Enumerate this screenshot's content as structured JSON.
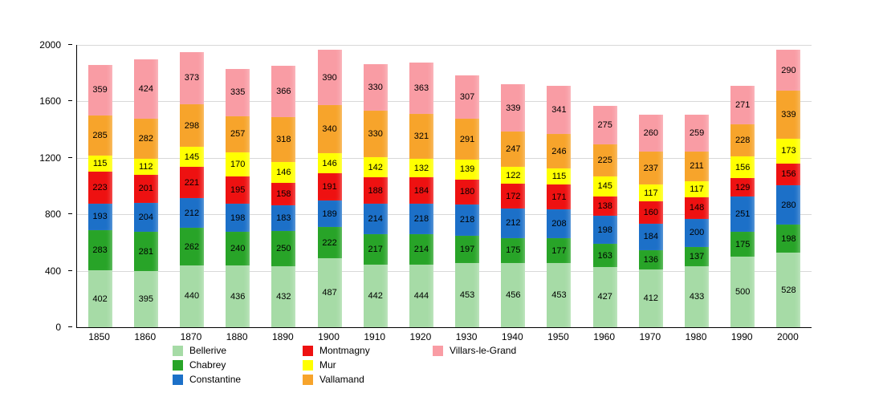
{
  "chart_data": {
    "type": "bar",
    "stacked": true,
    "title": "",
    "xlabel": "",
    "ylabel": "",
    "ylim": [
      0,
      2000
    ],
    "yticks": [
      0,
      400,
      800,
      1200,
      1600,
      2000
    ],
    "grid": true,
    "legend_position": "bottom",
    "categories": [
      "1850",
      "1860",
      "1870",
      "1880",
      "1890",
      "1900",
      "1910",
      "1920",
      "1930",
      "1940",
      "1950",
      "1960",
      "1970",
      "1980",
      "1990",
      "2000"
    ],
    "series": [
      {
        "name": "Bellerive",
        "color": "#a6dba6",
        "values": [
          402,
          395,
          440,
          436,
          432,
          487,
          442,
          444,
          453,
          456,
          453,
          427,
          412,
          433,
          500,
          528
        ]
      },
      {
        "name": "Chabrey",
        "color": "#28a428",
        "values": [
          283,
          281,
          262,
          240,
          250,
          222,
          217,
          214,
          197,
          175,
          177,
          163,
          136,
          137,
          175,
          198
        ]
      },
      {
        "name": "Constantine",
        "color": "#1c70c8",
        "values": [
          193,
          204,
          212,
          198,
          183,
          189,
          214,
          218,
          218,
          212,
          208,
          198,
          184,
          200,
          251,
          280
        ]
      },
      {
        "name": "Montmagny",
        "color": "#ee1111",
        "values": [
          223,
          201,
          221,
          195,
          158,
          191,
          188,
          184,
          180,
          172,
          171,
          138,
          160,
          148,
          129,
          156
        ]
      },
      {
        "name": "Mur",
        "color": "#ffff00",
        "values": [
          115,
          112,
          145,
          170,
          146,
          146,
          142,
          132,
          139,
          122,
          115,
          145,
          117,
          117,
          156,
          173
        ]
      },
      {
        "name": "Vallamand",
        "color": "#f7a42b",
        "values": [
          285,
          282,
          298,
          257,
          318,
          340,
          330,
          321,
          291,
          247,
          246,
          225,
          237,
          211,
          228,
          339
        ]
      },
      {
        "name": "Villars-le-Grand",
        "color": "#f99ca4",
        "values": [
          359,
          424,
          373,
          335,
          366,
          390,
          330,
          363,
          307,
          339,
          341,
          275,
          260,
          259,
          271,
          290
        ]
      }
    ]
  }
}
